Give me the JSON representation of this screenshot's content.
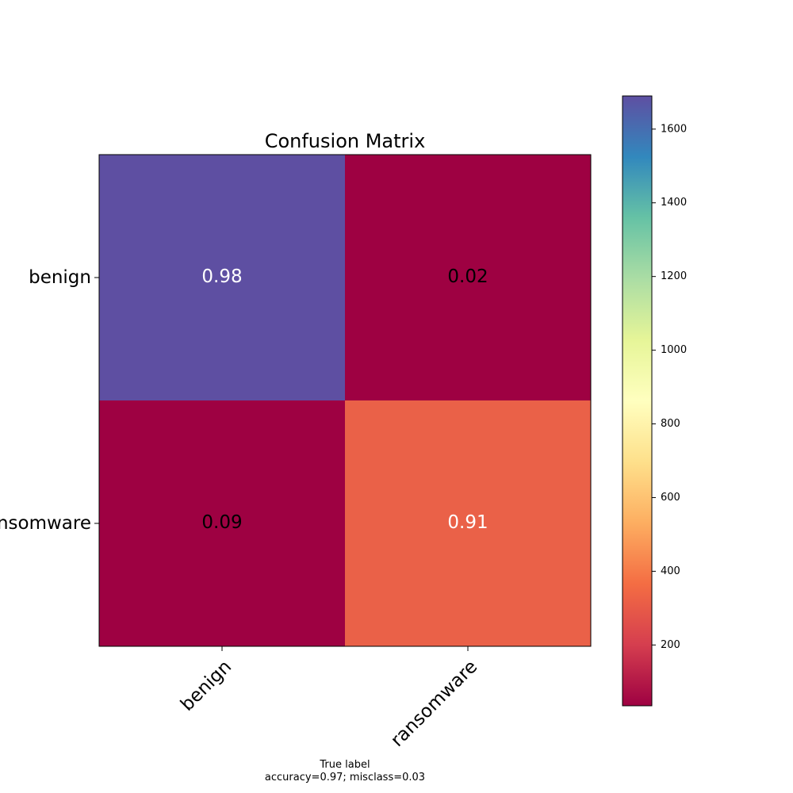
{
  "chart_data": {
    "type": "heatmap",
    "title": "Confusion Matrix",
    "xlabel": "True label\naccuracy=0.97; misclass=0.03",
    "ylabel": "",
    "x_categories": [
      "benign",
      "ransomware"
    ],
    "y_categories": [
      "benign",
      "ransomware"
    ],
    "cells": [
      {
        "row": 0,
        "col": 0,
        "value": 0.98,
        "count": 1690,
        "fill": "#5e4fa2",
        "text_color": "#ffffff"
      },
      {
        "row": 0,
        "col": 1,
        "value": 0.02,
        "count": 35,
        "fill": "#9e0142",
        "text_color": "#000000"
      },
      {
        "row": 1,
        "col": 0,
        "value": 0.09,
        "count": 35,
        "fill": "#9e0142",
        "text_color": "#000000"
      },
      {
        "row": 1,
        "col": 1,
        "value": 0.91,
        "count": 340,
        "fill": "#ea6148",
        "text_color": "#ffffff"
      }
    ],
    "colorbar": {
      "colormap": "Spectral",
      "range": [
        35,
        1690
      ],
      "ticks": [
        200,
        400,
        600,
        800,
        1000,
        1200,
        1400,
        1600
      ],
      "tick_labels": [
        "200",
        "400",
        "600",
        "800",
        "1000",
        "1200",
        "1400",
        "1600"
      ]
    },
    "grid": false
  }
}
